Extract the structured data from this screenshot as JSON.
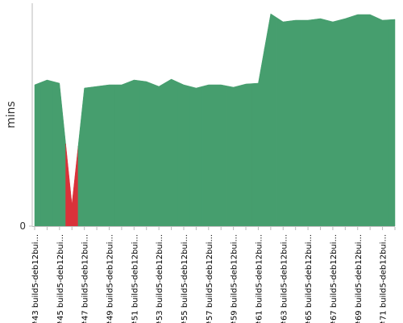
{
  "chart_data": {
    "type": "area",
    "y_label": "mins",
    "categories": [
      "#43 build5-deb12bui...",
      null,
      "#45 build5-deb12bui...",
      null,
      "#47 build5-deb12bui...",
      null,
      "#49 build5-deb12bui...",
      null,
      "#51 build5-deb12bui...",
      null,
      "#53 build5-deb12bui...",
      null,
      "#55 build5-deb12bui...",
      null,
      "#57 build5-deb12bui...",
      null,
      "#59 build5-deb12bui...",
      null,
      "#61 build5-deb12bui...",
      null,
      "#63 build5-deb12bui...",
      null,
      "#65 build5-deb12bui...",
      null,
      "#67 build5-deb12bui...",
      null,
      "#69 build5-deb12bui...",
      null,
      "#71 build5-deb12bui...",
      null
    ],
    "values": [
      17.5,
      18.1,
      17.7,
      2.7,
      17.1,
      17.3,
      17.5,
      17.5,
      18.1,
      17.9,
      17.3,
      18.2,
      17.5,
      17.1,
      17.5,
      17.5,
      17.2,
      17.6,
      17.7,
      26.3,
      25.3,
      25.5,
      25.5,
      25.7,
      25.3,
      25.7,
      26.2,
      26.2,
      25.5,
      25.6
    ],
    "point_colors": [
      "#469e6e",
      "#469e6e",
      "#469e6e",
      "#d9323a",
      "#469e6e",
      "#469e6e",
      "#469e6e",
      "#469e6e",
      "#469e6e",
      "#469e6e",
      "#469e6e",
      "#469e6e",
      "#469e6e",
      "#469e6e",
      "#469e6e",
      "#469e6e",
      "#469e6e",
      "#469e6e",
      "#469e6e",
      "#469e6e",
      "#469e6e",
      "#469e6e",
      "#469e6e",
      "#469e6e",
      "#469e6e",
      "#469e6e",
      "#469e6e",
      "#469e6e",
      "#469e6e",
      "#469e6e"
    ],
    "ylim": [
      0,
      27.6
    ],
    "yticks": [
      0
    ]
  }
}
